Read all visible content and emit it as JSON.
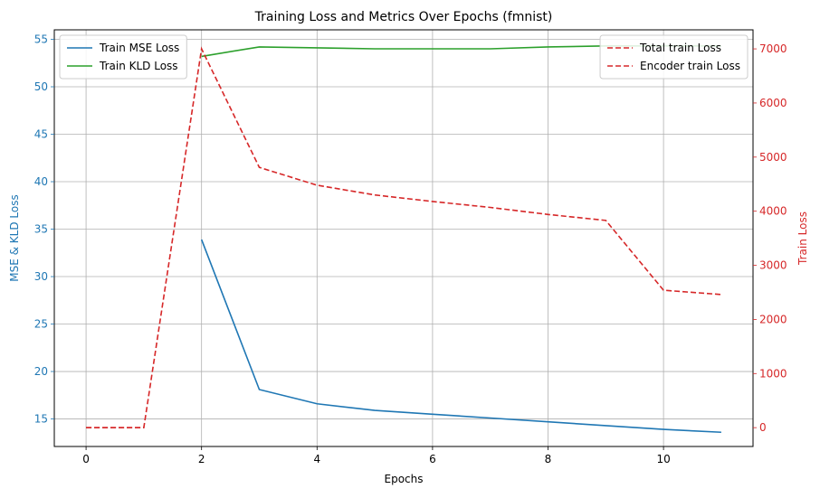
{
  "chart_data": {
    "type": "line",
    "title": "Training Loss and Metrics Over Epochs (fmnist)",
    "xlabel": "Epochs",
    "ylabel_left": "MSE & KLD Loss",
    "ylabel_right": "Train Loss",
    "xlim": [
      -0.55,
      11.55
    ],
    "ylim_left": [
      12.1,
      56.0
    ],
    "ylim_right": [
      -348,
      7352
    ],
    "xticks": [
      0,
      2,
      4,
      6,
      8,
      10
    ],
    "yticks_left": [
      15,
      20,
      25,
      30,
      35,
      40,
      45,
      50,
      55
    ],
    "yticks_right": [
      0,
      1000,
      2000,
      3000,
      4000,
      5000,
      6000,
      7000
    ],
    "grid": true,
    "colors": {
      "left_axis": "#1f77b4",
      "right_axis": "#d62728"
    },
    "legend_left_placement": "upper-left",
    "legend_right_placement": "upper-right",
    "series": [
      {
        "name": "Train MSE Loss",
        "axis": "left",
        "color": "#1f77b4",
        "style": "solid",
        "x": [
          2,
          3,
          4,
          5,
          6,
          7,
          8,
          9,
          10,
          11
        ],
        "y": [
          33.9,
          18.1,
          16.6,
          15.9,
          15.5,
          15.1,
          14.7,
          14.3,
          13.9,
          13.6
        ]
      },
      {
        "name": "Train KLD Loss",
        "axis": "left",
        "color": "#2ca02c",
        "style": "solid",
        "x": [
          2,
          3,
          4,
          5,
          6,
          7,
          8,
          9,
          10,
          11
        ],
        "y": [
          53.2,
          54.2,
          54.1,
          54.0,
          54.0,
          54.0,
          54.2,
          54.3,
          54.3,
          54.3
        ]
      },
      {
        "name": "Total train Loss",
        "axis": "right",
        "color": "#d62728",
        "style": "dashed",
        "x": [
          0,
          1,
          2,
          3,
          4,
          5,
          6,
          7,
          8,
          9,
          10,
          11
        ],
        "y": [
          0,
          0,
          7000,
          4810,
          4480,
          4300,
          4180,
          4070,
          3940,
          3830,
          2540,
          2460
        ]
      },
      {
        "name": "Encoder train Loss",
        "axis": "right",
        "color": "#d62728",
        "style": "dashed",
        "x": [
          0,
          1
        ],
        "y": [
          0,
          0
        ]
      }
    ]
  }
}
